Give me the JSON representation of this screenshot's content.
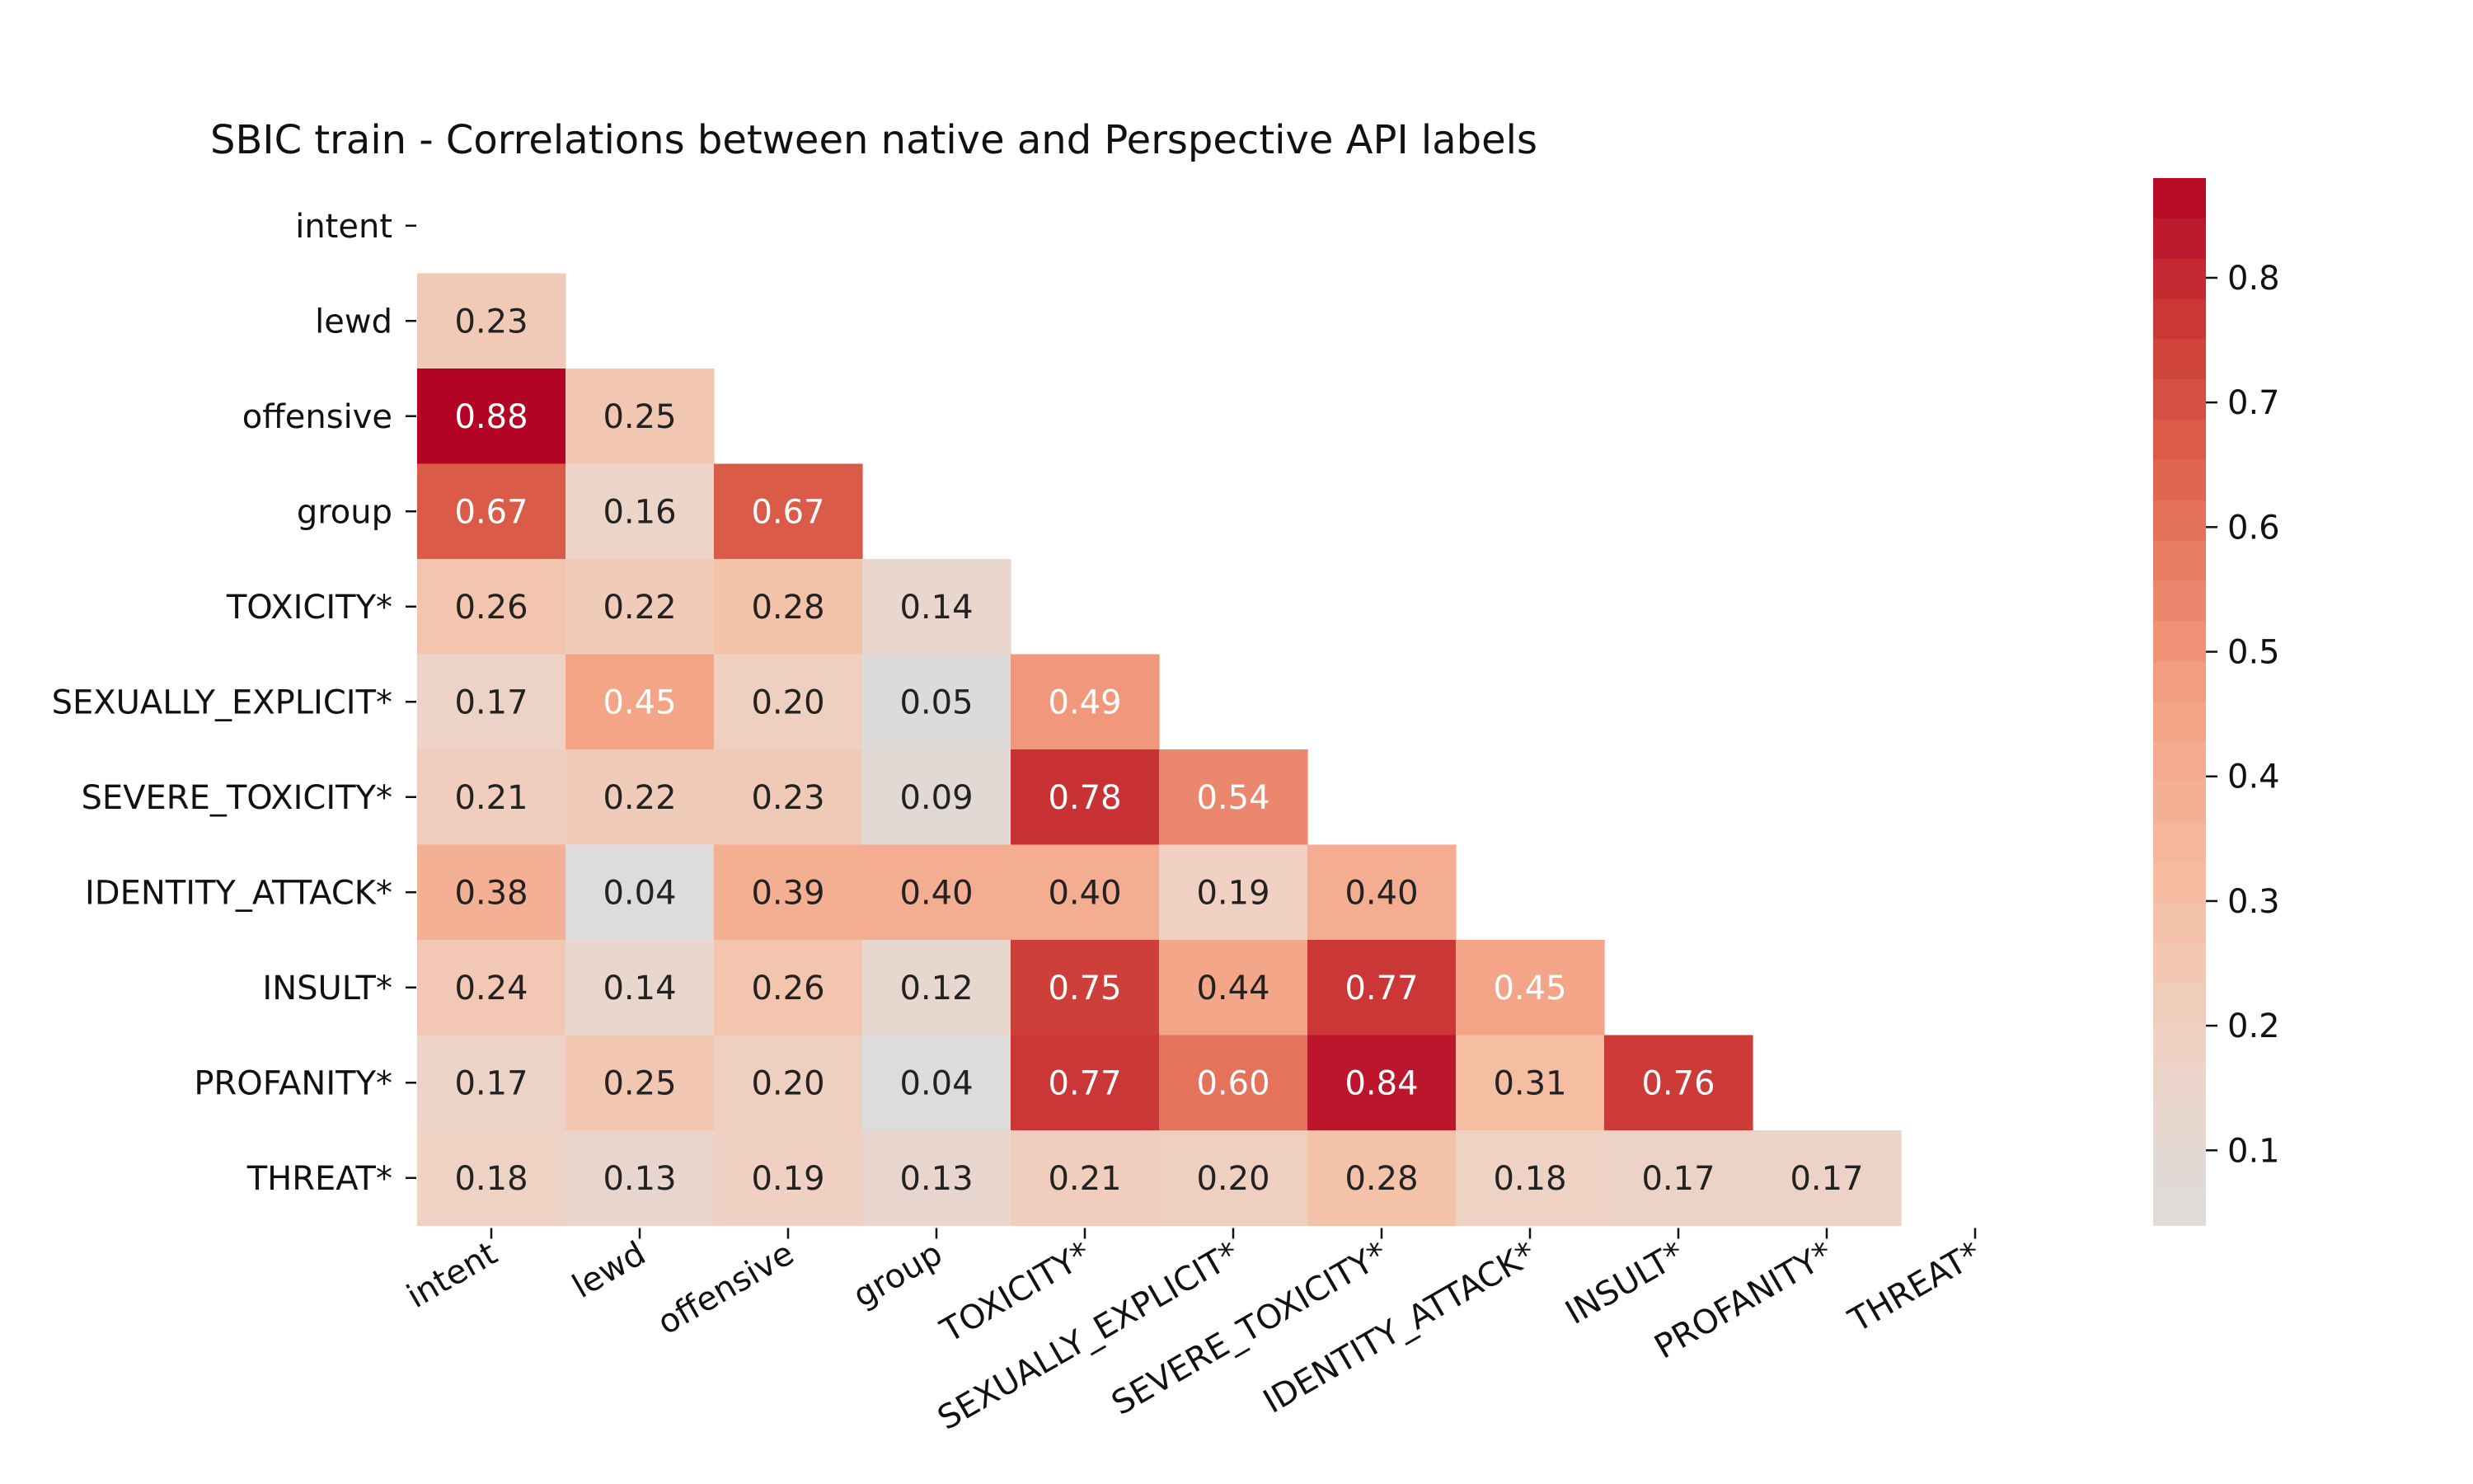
{
  "chart_data": {
    "type": "heatmap",
    "title": "SBIC train - Correlations between native and Perspective API labels",
    "xlabel": "",
    "ylabel": "",
    "mask": "upper-triangle-including-diagonal",
    "value_format": "2 decimals",
    "labels": [
      "intent",
      "lewd",
      "offensive",
      "group",
      "TOXICITY*",
      "SEXUALLY_EXPLICIT*",
      "SEVERE_TOXICITY*",
      "IDENTITY_ATTACK*",
      "INSULT*",
      "PROFANITY*",
      "THREAT*"
    ],
    "rows": [
      [],
      [
        0.23
      ],
      [
        0.88,
        0.25
      ],
      [
        0.67,
        0.16,
        0.67
      ],
      [
        0.26,
        0.22,
        0.28,
        0.14
      ],
      [
        0.17,
        0.45,
        0.2,
        0.05,
        0.49
      ],
      [
        0.21,
        0.22,
        0.23,
        0.09,
        0.78,
        0.54
      ],
      [
        0.38,
        0.04,
        0.39,
        0.4,
        0.4,
        0.19,
        0.4
      ],
      [
        0.24,
        0.14,
        0.26,
        0.12,
        0.75,
        0.44,
        0.77,
        0.45
      ],
      [
        0.17,
        0.25,
        0.2,
        0.04,
        0.77,
        0.6,
        0.84,
        0.31,
        0.76
      ],
      [
        0.18,
        0.13,
        0.19,
        0.13,
        0.21,
        0.2,
        0.28,
        0.18,
        0.17,
        0.17
      ]
    ],
    "colormap": "coolwarm (light gray to dark red)",
    "color_range": [
      0.04,
      0.88
    ],
    "colorbar_ticks": [
      "0.1",
      "0.2",
      "0.3",
      "0.4",
      "0.5",
      "0.6",
      "0.7",
      "0.8"
    ],
    "colors": {
      "low": "#dcdcdc",
      "mid": "#f4a285",
      "high": "#b40426",
      "text_dark": "#222222",
      "text_light": "#ffffff"
    }
  }
}
